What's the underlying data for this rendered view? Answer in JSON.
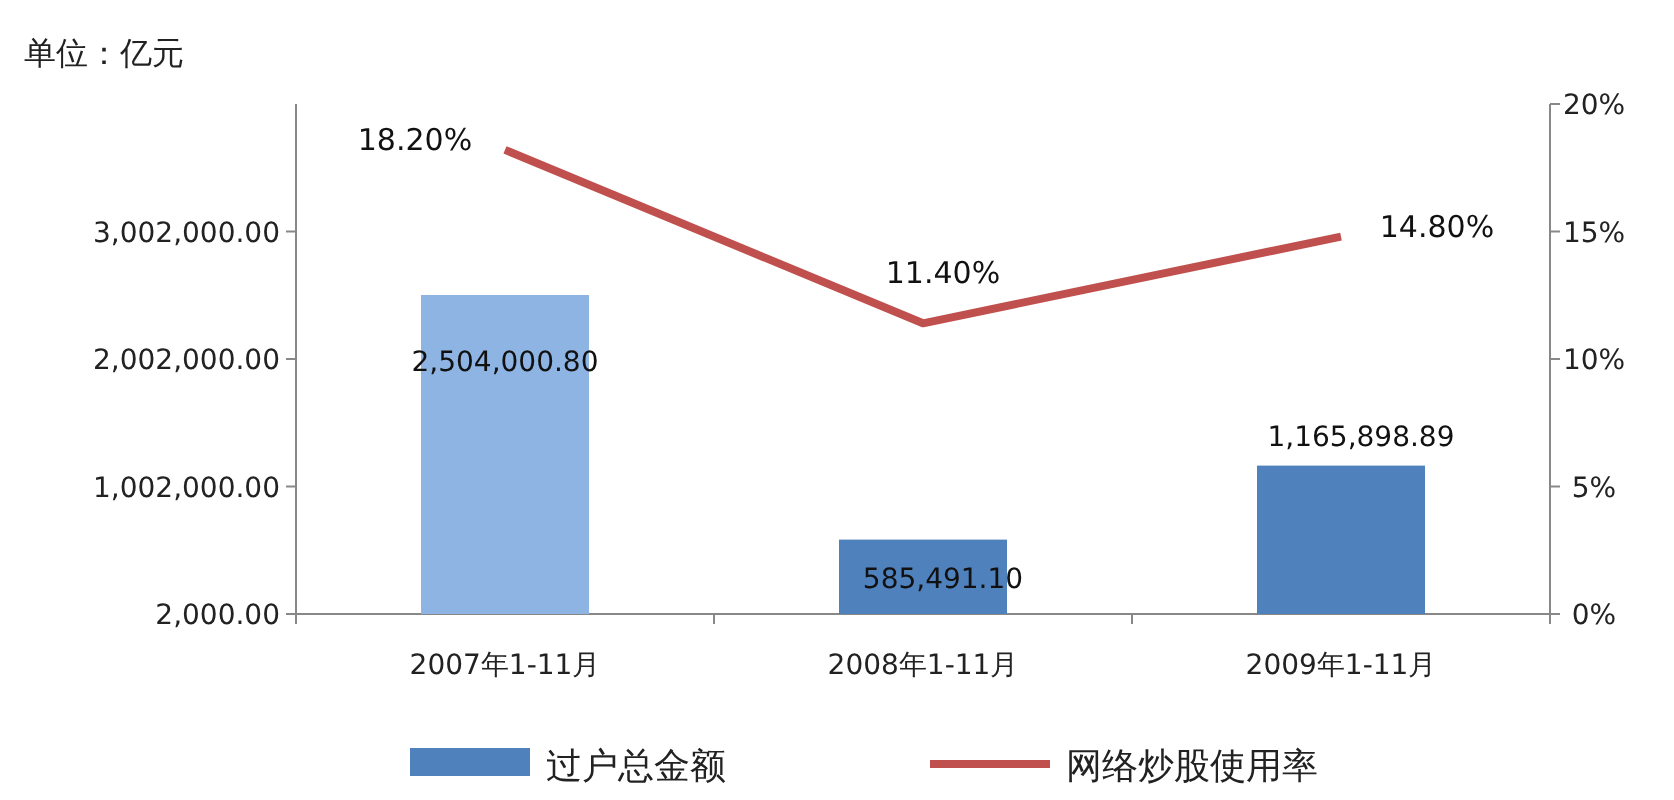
{
  "chart_data": {
    "type": "bar",
    "ylabel": "单位：亿元",
    "categories": [
      "2007年1-11月",
      "2008年1-11月",
      "2009年1-11月"
    ],
    "series": [
      {
        "name": "过户总金额",
        "color": "#4f81bd",
        "colors": [
          "#8db4e2",
          "#4f81bd",
          "#4f81bd"
        ],
        "values": [
          2504000.8,
          585491.1,
          1165898.89
        ],
        "value_labels": [
          "2,504,000.80",
          "585,491.10",
          "1,165,898.89"
        ]
      },
      {
        "name": "网络炒股使用率",
        "type": "line",
        "axis": "y2",
        "color": "#c0504d",
        "marker": "none",
        "values": [
          18.2,
          11.4,
          14.8
        ],
        "value_labels": [
          "18.20%",
          "11.40%",
          "14.80%"
        ]
      }
    ],
    "ylim": [
      2000,
      4002000
    ],
    "yticks": [
      {
        "value": 2000,
        "label": "2,000.00"
      },
      {
        "value": 1002000,
        "label": "1,002,000.00"
      },
      {
        "value": 2002000,
        "label": "2,002,000.00"
      },
      {
        "value": 3002000,
        "label": "3,002,000.00"
      }
    ],
    "y2lim": [
      0,
      20
    ],
    "y2ticks": [
      {
        "value": 0,
        "label": "0%"
      },
      {
        "value": 5,
        "label": "5%"
      },
      {
        "value": 10,
        "label": "10%"
      },
      {
        "value": 15,
        "label": "15%"
      },
      {
        "value": 20,
        "label": "20%"
      }
    ],
    "grid": false,
    "legend": "bottom"
  }
}
